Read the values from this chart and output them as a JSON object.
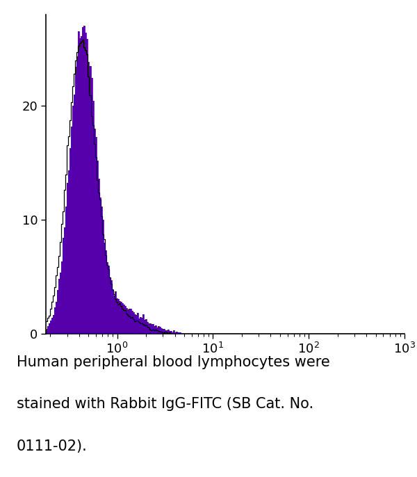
{
  "xlim": [
    0.18,
    1000
  ],
  "ylim": [
    0,
    28
  ],
  "yticks": [
    0,
    10,
    20
  ],
  "fill_color": "#5500aa",
  "line_color": "#000000",
  "fill_alpha": 1.0,
  "peak_height": 27,
  "caption_line1": "Human peripheral blood lymphocytes were",
  "caption_line2": "stained with Rabbit IgG-FITC (SB Cat. No.",
  "caption_line3": "0111-02).",
  "caption_fontsize": 15,
  "tick_fontsize": 13,
  "fig_width": 6.0,
  "fig_height": 6.86,
  "dpi": 100
}
